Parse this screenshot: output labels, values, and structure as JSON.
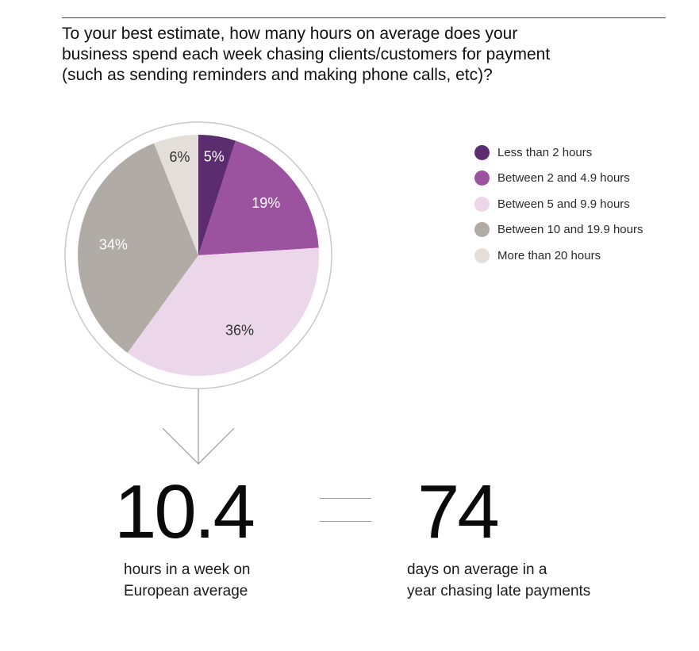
{
  "question": {
    "lines": [
      "To your best estimate, how many hours on average does your",
      "business spend each week chasing clients/customers for payment",
      "(such as sending reminders and making phone calls, etc)?"
    ]
  },
  "chart_data": {
    "type": "pie",
    "unit": "%",
    "start_angle_deg": 0,
    "direction": "clockwise",
    "slices": [
      {
        "label": "Less than 2 hours",
        "value": 5,
        "display": "5%",
        "color": "#5b2d6e",
        "label_color": "#ffffff"
      },
      {
        "label": "Between 2 and 4.9 hours",
        "value": 19,
        "display": "19%",
        "color": "#9b529f",
        "label_color": "#ffffff"
      },
      {
        "label": "Between 5 and 9.9 hours",
        "value": 36,
        "display": "36%",
        "color": "#ecd6ea",
        "label_color": "#333333"
      },
      {
        "label": "Between 10 and 19.9 hours",
        "value": 34,
        "display": "34%",
        "color": "#b0aba5",
        "label_color": "#ffffff"
      },
      {
        "label": "More than 20 hours",
        "value": 6,
        "display": "6%",
        "color": "#e3dfd8",
        "label_color": "#333333"
      }
    ],
    "legend_position": "right",
    "outer_ring": true
  },
  "stats": {
    "left": {
      "value": "10.4",
      "caption": [
        "hours in a week on",
        "European average"
      ]
    },
    "right": {
      "value": "74",
      "caption": [
        "days on average in a",
        "year chasing late payments"
      ]
    }
  }
}
